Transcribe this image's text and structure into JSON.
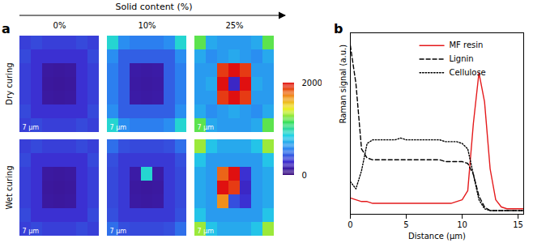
{
  "chart_data": [
    {
      "type": "heatmap",
      "title": "a",
      "xlabel": "Solid content (%)",
      "columns": [
        "0%",
        "10%",
        "25%"
      ],
      "rows": [
        "Dry curing",
        "Wet curing"
      ],
      "scale_bar": "7 µm",
      "colorbar": {
        "range": [
          0,
          2000
        ],
        "ticks": [
          0,
          2000
        ]
      },
      "images": [
        [
          [
            [
              350,
              380,
              350,
              350,
              350,
              380,
              350
            ],
            [
              380,
              300,
              300,
              300,
              300,
              300,
              380
            ],
            [
              350,
              300,
              130,
              120,
              130,
              300,
              350
            ],
            [
              350,
              300,
              120,
              110,
              120,
              300,
              350
            ],
            [
              350,
              300,
              130,
              120,
              130,
              300,
              350
            ],
            [
              380,
              300,
              300,
              300,
              300,
              300,
              380
            ],
            [
              350,
              380,
              350,
              350,
              350,
              380,
              350
            ]
          ],
          [
            [
              900,
              600,
              550,
              550,
              550,
              600,
              900
            ],
            [
              600,
              450,
              450,
              450,
              450,
              450,
              600
            ],
            [
              550,
              450,
              150,
              140,
              150,
              450,
              550
            ],
            [
              550,
              450,
              140,
              130,
              140,
              450,
              550
            ],
            [
              550,
              450,
              150,
              140,
              150,
              450,
              550
            ],
            [
              600,
              450,
              450,
              450,
              450,
              450,
              600
            ],
            [
              900,
              600,
              550,
              550,
              550,
              600,
              900
            ]
          ],
          [
            [
              1200,
              700,
              650,
              650,
              650,
              700,
              1200
            ],
            [
              700,
              600,
              650,
              700,
              650,
              600,
              700
            ],
            [
              650,
              650,
              1900,
              2000,
              1900,
              650,
              650
            ],
            [
              650,
              700,
              2000,
              250,
              2000,
              700,
              650
            ],
            [
              650,
              650,
              1900,
              2000,
              1900,
              650,
              650
            ],
            [
              700,
              600,
              650,
              700,
              650,
              600,
              700
            ],
            [
              1200,
              700,
              650,
              650,
              650,
              700,
              1200
            ]
          ]
        ],
        [
          [
            [
              350,
              380,
              350,
              350,
              350,
              380,
              350
            ],
            [
              380,
              300,
              300,
              300,
              300,
              300,
              380
            ],
            [
              350,
              300,
              130,
              120,
              130,
              300,
              350
            ],
            [
              350,
              300,
              120,
              110,
              120,
              300,
              350
            ],
            [
              350,
              300,
              130,
              120,
              130,
              300,
              350
            ],
            [
              380,
              300,
              300,
              300,
              300,
              300,
              380
            ],
            [
              350,
              380,
              350,
              350,
              350,
              380,
              350
            ]
          ],
          [
            [
              500,
              400,
              380,
              380,
              380,
              400,
              500
            ],
            [
              400,
              330,
              330,
              330,
              330,
              330,
              400
            ],
            [
              380,
              330,
              150,
              900,
              150,
              330,
              380
            ],
            [
              380,
              330,
              130,
              120,
              130,
              330,
              380
            ],
            [
              380,
              330,
              140,
              130,
              140,
              330,
              380
            ],
            [
              400,
              330,
              330,
              330,
              330,
              330,
              400
            ],
            [
              500,
              400,
              380,
              380,
              380,
              400,
              500
            ]
          ],
          [
            [
              1300,
              800,
              700,
              700,
              700,
              800,
              1300
            ],
            [
              800,
              650,
              650,
              650,
              650,
              650,
              800
            ],
            [
              700,
              650,
              1800,
              2000,
              300,
              650,
              700
            ],
            [
              700,
              650,
              2000,
              1900,
              250,
              650,
              700
            ],
            [
              700,
              650,
              1700,
              400,
              300,
              650,
              700
            ],
            [
              800,
              650,
              650,
              650,
              650,
              650,
              800
            ],
            [
              1300,
              800,
              700,
              700,
              700,
              800,
              1300
            ]
          ]
        ]
      ]
    },
    {
      "type": "line",
      "title": "b",
      "xlabel": "Distance (µm)",
      "ylabel": "Raman signal (a.u.)",
      "x": [
        0,
        0.5,
        1,
        1.5,
        2,
        2.5,
        3,
        3.5,
        4,
        4.5,
        5,
        5.5,
        6,
        6.5,
        7,
        7.5,
        8,
        8.5,
        9,
        9.5,
        10,
        10.5,
        11,
        11.5,
        12,
        12.5,
        13,
        13.5,
        14,
        14.5,
        15,
        15.5
      ],
      "series": [
        {
          "name": "MF resin",
          "color": "#e41a1c",
          "line_style": "solid",
          "values": [
            0.09,
            0.08,
            0.07,
            0.07,
            0.06,
            0.06,
            0.06,
            0.06,
            0.06,
            0.06,
            0.06,
            0.06,
            0.06,
            0.06,
            0.06,
            0.06,
            0.06,
            0.06,
            0.06,
            0.07,
            0.08,
            0.13,
            0.5,
            0.78,
            0.62,
            0.25,
            0.08,
            0.04,
            0.03,
            0.03,
            0.03,
            0.03
          ]
        },
        {
          "name": "Lignin",
          "color": "#000000",
          "line_style": "dashed",
          "values": [
            0.93,
            0.72,
            0.36,
            0.31,
            0.3,
            0.3,
            0.3,
            0.3,
            0.3,
            0.3,
            0.3,
            0.3,
            0.3,
            0.3,
            0.3,
            0.3,
            0.3,
            0.29,
            0.29,
            0.29,
            0.29,
            0.28,
            0.22,
            0.1,
            0.04,
            0.02,
            0.02,
            0.02,
            0.02,
            0.02,
            0.02,
            0.02
          ]
        },
        {
          "name": "Cellulose",
          "color": "#000000",
          "line_style": "dotted",
          "values": [
            0.18,
            0.14,
            0.24,
            0.39,
            0.41,
            0.41,
            0.41,
            0.41,
            0.41,
            0.42,
            0.41,
            0.41,
            0.41,
            0.41,
            0.41,
            0.41,
            0.41,
            0.4,
            0.4,
            0.4,
            0.39,
            0.36,
            0.22,
            0.08,
            0.03,
            0.02,
            0.02,
            0.02,
            0.02,
            0.02,
            0.02,
            0.02
          ]
        }
      ],
      "xlim": [
        0,
        15.5
      ],
      "xticks": [
        0,
        5,
        10,
        15
      ],
      "ylim": [
        0,
        1
      ],
      "tick_labels": "x",
      "legend": "top-right"
    }
  ]
}
